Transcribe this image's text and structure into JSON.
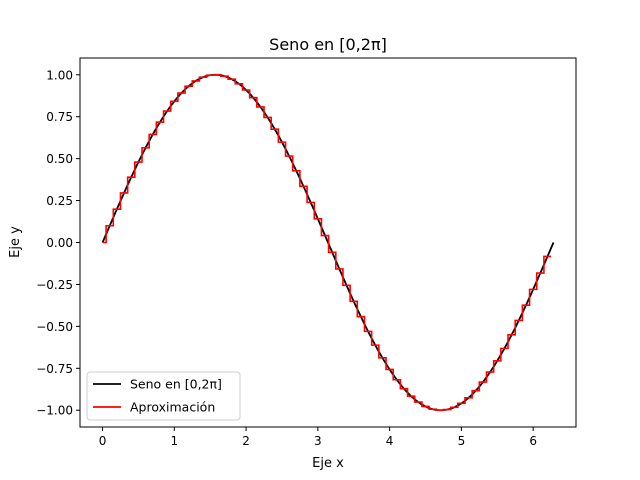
{
  "chart_data": {
    "type": "line",
    "title": "Seno en [0,2π]",
    "xlabel": "Eje x",
    "ylabel": "Eje y",
    "xlim": [
      -0.314,
      6.597
    ],
    "ylim": [
      -1.1,
      1.1
    ],
    "x_ticks": [
      "0",
      "1",
      "2",
      "3",
      "4",
      "5",
      "6"
    ],
    "y_ticks": [
      "−1.00",
      "−0.75",
      "−0.50",
      "−0.25",
      "0.00",
      "0.25",
      "0.50",
      "0.75",
      "1.00"
    ],
    "grid": false,
    "legend_position": "lower-left",
    "series": [
      {
        "name": "Seno en [0,2π]",
        "color": "#000000",
        "function": "sin",
        "x_range": [
          0,
          6.2832
        ]
      },
      {
        "name": "Aproximación",
        "color": "#ff0000",
        "style": "step",
        "function": "sin",
        "step_width": 0.1,
        "x_range": [
          0,
          6.2832
        ]
      }
    ]
  }
}
